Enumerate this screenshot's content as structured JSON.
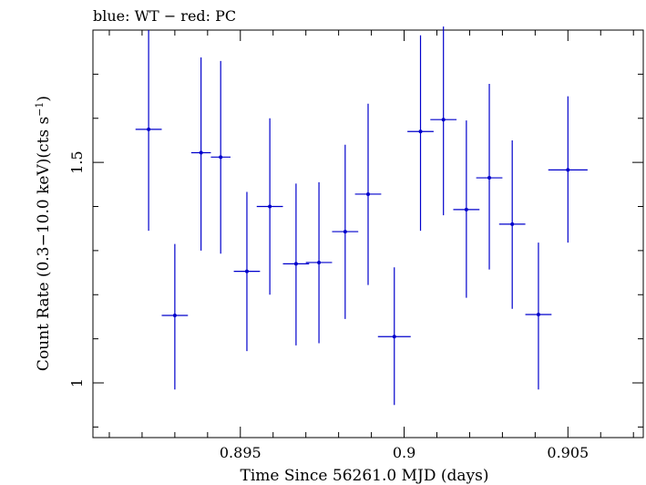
{
  "chart_data": {
    "type": "scatter",
    "title": "blue: WT − red: PC",
    "xlabel": "Time Since 56261.0 MJD (days)",
    "ylabel_main": "Count Rate (0.3−10.0 keV)(cts s",
    "ylabel_sup": "−1",
    "ylabel_end": ")",
    "xlim": [
      0.8905,
      0.9073
    ],
    "ylim": [
      0.876,
      1.8
    ],
    "x_ticks": [
      0.895,
      0.9,
      0.905
    ],
    "x_tick_labels": [
      "0.895",
      "0.9",
      "0.905"
    ],
    "y_ticks": [
      1.0,
      1.5
    ],
    "y_tick_labels": [
      "1",
      "1.5"
    ],
    "x_minor_step": 0.001,
    "y_minor_step": 0.1,
    "series": [
      {
        "color": "#0000cc",
        "points": [
          {
            "x": 0.8922,
            "xerr": 0.0004,
            "y": 1.575,
            "ylo": 1.345,
            "yhi": 1.8
          },
          {
            "x": 0.893,
            "xerr": 0.0004,
            "y": 1.153,
            "ylo": 0.985,
            "yhi": 1.315
          },
          {
            "x": 0.8938,
            "xerr": 0.0003,
            "y": 1.522,
            "ylo": 1.3,
            "yhi": 1.738
          },
          {
            "x": 0.8944,
            "xerr": 0.0003,
            "y": 1.512,
            "ylo": 1.293,
            "yhi": 1.73
          },
          {
            "x": 0.8952,
            "xerr": 0.0004,
            "y": 1.253,
            "ylo": 1.072,
            "yhi": 1.433
          },
          {
            "x": 0.8959,
            "xerr": 0.0004,
            "y": 1.4,
            "ylo": 1.2,
            "yhi": 1.6
          },
          {
            "x": 0.8967,
            "xerr": 0.0004,
            "y": 1.27,
            "ylo": 1.085,
            "yhi": 1.452
          },
          {
            "x": 0.8974,
            "xerr": 0.0004,
            "y": 1.273,
            "ylo": 1.09,
            "yhi": 1.455
          },
          {
            "x": 0.8982,
            "xerr": 0.0004,
            "y": 1.343,
            "ylo": 1.145,
            "yhi": 1.54
          },
          {
            "x": 0.8989,
            "xerr": 0.0004,
            "y": 1.428,
            "ylo": 1.222,
            "yhi": 1.633
          },
          {
            "x": 0.8997,
            "xerr": 0.0005,
            "y": 1.105,
            "ylo": 0.95,
            "yhi": 1.262
          },
          {
            "x": 0.9005,
            "xerr": 0.0004,
            "y": 1.57,
            "ylo": 1.345,
            "yhi": 1.788
          },
          {
            "x": 0.9012,
            "xerr": 0.0004,
            "y": 1.597,
            "ylo": 1.38,
            "yhi": 1.808
          },
          {
            "x": 0.9019,
            "xerr": 0.0004,
            "y": 1.393,
            "ylo": 1.193,
            "yhi": 1.595
          },
          {
            "x": 0.9026,
            "xerr": 0.0004,
            "y": 1.465,
            "ylo": 1.257,
            "yhi": 1.678
          },
          {
            "x": 0.9033,
            "xerr": 0.0004,
            "y": 1.36,
            "ylo": 1.168,
            "yhi": 1.55
          },
          {
            "x": 0.9041,
            "xerr": 0.0004,
            "y": 1.155,
            "ylo": 0.985,
            "yhi": 1.318
          },
          {
            "x": 0.905,
            "xerr": 0.0006,
            "y": 1.483,
            "ylo": 1.318,
            "yhi": 1.65
          }
        ]
      }
    ]
  }
}
